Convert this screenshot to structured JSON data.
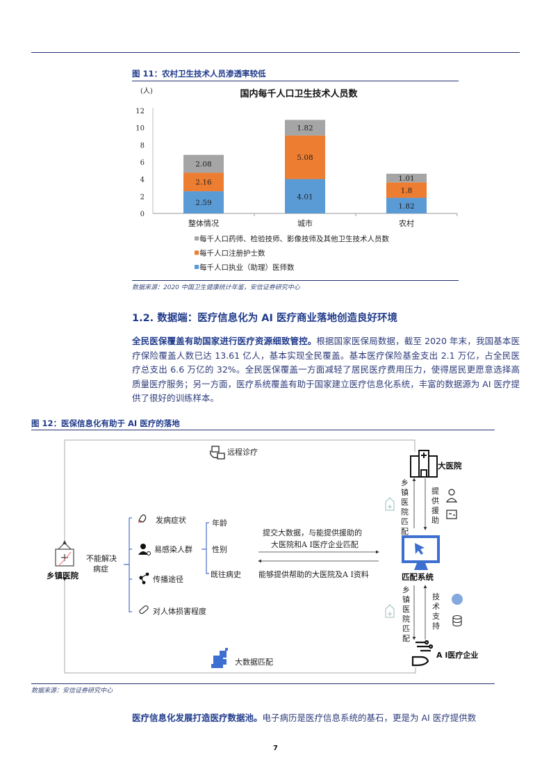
{
  "figure11": {
    "title": "图 11：农村卫生技术人员渗透率较低",
    "source": "数据来源：2020 中国卫生健康统计年鉴，安信证券研究中心"
  },
  "chart_data": {
    "type": "bar",
    "stacked": true,
    "title": "国内每千人口卫生技术人员数",
    "ylabel": "(人)",
    "xlabel": "",
    "categories": [
      "整体情况",
      "城市",
      "农村"
    ],
    "ylim": [
      0,
      12
    ],
    "yticks": [
      0,
      2,
      4,
      6,
      8,
      10,
      12
    ],
    "grid": false,
    "legend_position": "bottom",
    "series": [
      {
        "name": "每千人口执业（助理）医师数",
        "color": "#5B9BD5",
        "values": [
          2.59,
          4.01,
          1.82
        ]
      },
      {
        "name": "每千人口注册护士数",
        "color": "#ED7D31",
        "values": [
          2.16,
          5.08,
          1.8
        ]
      },
      {
        "name": "每千人口药师、检验技师、影像技师及其他卫生技术人员数",
        "color": "#A5A5A5",
        "values": [
          2.08,
          1.82,
          1.01
        ]
      }
    ],
    "legend_order": [
      2,
      1,
      0
    ]
  },
  "section": {
    "heading": "1.2. 数据端：医疗信息化为 AI 医疗商业落地创造良好环境",
    "para1_lead": "全民医保覆盖有助国家进行医疗资源细致管控。",
    "para1_body": "根据国家医保局数据，截至 2020 年末，我国基本医疗保险覆盖人数已达 13.61 亿人，基本实现全民覆盖。基本医疗保险基金支出 2.1 万亿，占全民医疗总支出 6.6 万亿的 32%。全民医保覆盖一方面减轻了居民医疗费用压力，使得居民更愿意选择高质量医疗服务；另一方面，医疗系统覆盖有助于国家建立医疗信息化系统，丰富的数据源为 AI 医疗提供了很好的训练样本。",
    "para2_lead": "医疗信息化发展打造医疗数据池。",
    "para2_body": "电子病历是医疗信息系统的基石，更是为 AI 医疗提供数"
  },
  "figure12": {
    "title": "图 12：医保信息化有助于 AI 医疗的落地",
    "source": "数据来源：安信证券研究中心",
    "remote": "远程诊疗",
    "big_hospital": "大医院",
    "township_match": "乡镇医院匹配",
    "provide_aid": "提供援助",
    "match_system": "匹配系统",
    "tech_support": "技术支持",
    "ai_company": "A I医疗企业",
    "big_data_match": "大数据匹配",
    "township_hospital": "乡镇医院",
    "cannot_solve": [
      "不能解决",
      "病症"
    ],
    "factors": [
      "发病症状",
      "易感染人群",
      "传播途径",
      "对人体损害程度"
    ],
    "sub_factors": [
      "年龄",
      "性别",
      "既往病史"
    ],
    "submit_text": [
      "提交大数据，与能提供援助的",
      "大医院和A I医疗企业匹配"
    ],
    "return_text": "能够提供帮助的大医院及A I资料"
  },
  "page_number": "7"
}
